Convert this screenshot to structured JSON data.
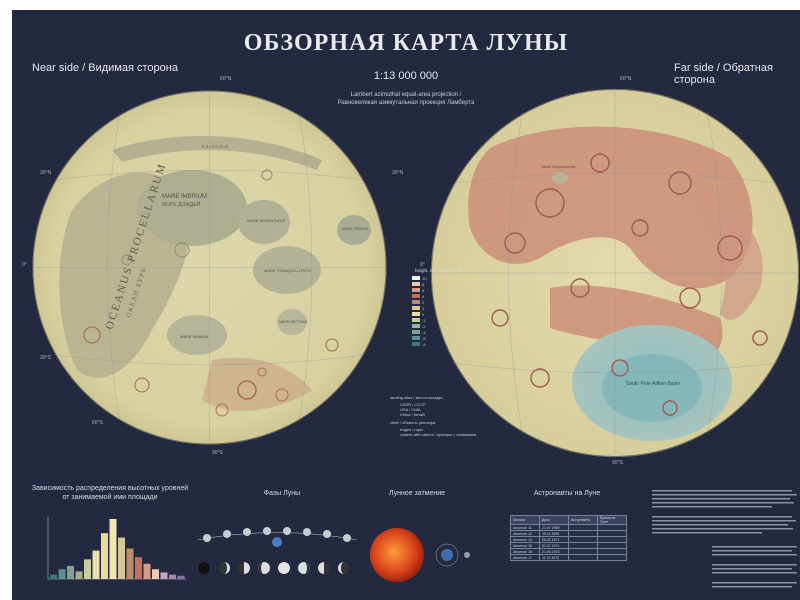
{
  "poster": {
    "title": "ОБЗОРНАЯ КАРТА ЛУНЫ",
    "near_side": "Near side / Видимая сторона",
    "far_side": "Far side / Обратная сторона",
    "scale": "1:13 000 000",
    "projection_en": "Lambert azimuthal equal-area projection /",
    "projection_ru": "Равновеликая азимутальная проекция Ламберта",
    "background_color": "#232a3f"
  },
  "near_map": {
    "labels": {
      "oceanus": "OCEANUS PROCELLARUM",
      "oceanus_ru": "ОКЕАН БУРЬ",
      "imbrium": "MARE IMBRIUM",
      "imbrium_ru": "МОРЕ ДОЖДЕЙ",
      "serenitatis": "MARE SERENITATIS",
      "tranquillitatis": "MARE TRANQUILLITATIS",
      "nectaris": "MARE NECTARIS",
      "nubium": "MARE NUBIUM",
      "crisium": "MARE CRISIUM",
      "frigoris": "FRIGORIS"
    }
  },
  "far_map": {
    "labels": {
      "moscoviense": "Mare Moscoviense",
      "aitken": "South Pole-Aitken Basin"
    }
  },
  "graticule": {
    "lat_top": "60°N",
    "lat_30n": "30°N",
    "equator": "0°",
    "lat_30s": "30°S",
    "lat_60s": "60°S",
    "lat_bottom": "90°S"
  },
  "legend": {
    "title": "height, km / высота, км",
    "values": [
      "10",
      "8",
      "6",
      "4",
      "2",
      "1",
      "0",
      "-1",
      "-2",
      "-4",
      "-6",
      "-8"
    ],
    "colors": [
      "#f4f0e6",
      "#e9c9b8",
      "#d99a86",
      "#c46f5f",
      "#b98d6a",
      "#d6c799",
      "#e7e1b2",
      "#c9cc9e",
      "#a3b08e",
      "#7f9f97",
      "#5e8e92",
      "#3f7680"
    ],
    "landing_sites": "landing sites / места посадки",
    "landing_list": [
      "USSR / СССР",
      "USA / США",
      "China / Китай"
    ],
    "relief": "relief / объекты рельефа",
    "relief_list": [
      "ridges / горы",
      "craters with names / кратеры с названием"
    ]
  },
  "bottom": {
    "histogram_title_1": "Зависимость распределения высотных уровней",
    "histogram_title_2": "от занимаемой ими площади",
    "histogram_values": [
      4,
      9,
      12,
      7,
      18,
      26,
      42,
      55,
      38,
      28,
      20,
      14,
      9,
      6,
      4,
      3
    ],
    "phases_title": "Фазы Луны",
    "eclipse_title": "Лунное затмение",
    "astronauts_title": "Астронавты на Луне",
    "astronaut_table": {
      "headers": [
        "Миссия",
        "Дата",
        "Астронавты",
        "Время на Луне"
      ],
      "rows": [
        [
          "Аполлон 11",
          "21.07.1969",
          "",
          ""
        ],
        [
          "Аполлон 12",
          "19.11.1969",
          "",
          ""
        ],
        [
          "Аполлон 14",
          "05.02.1971",
          "",
          ""
        ],
        [
          "Аполлон 15",
          "31.07.1971",
          "",
          ""
        ],
        [
          "Аполлон 16",
          "21.04.1972",
          "",
          ""
        ],
        [
          "Аполлон 17",
          "11.12.1972",
          "",
          ""
        ]
      ]
    }
  }
}
